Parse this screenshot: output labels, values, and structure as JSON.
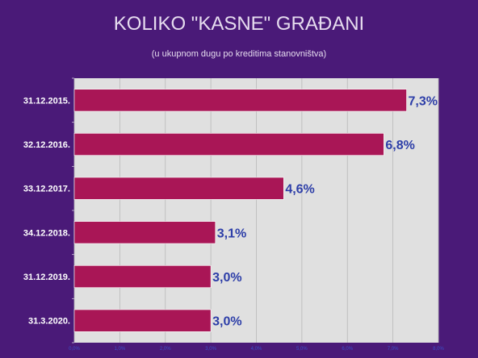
{
  "chart_data": {
    "type": "bar",
    "orientation": "horizontal",
    "title": "KOLIKO \"KASNE\" GRAĐANI",
    "subtitle": "(u ukupnom dugu po kreditima stanovništva)",
    "categories": [
      "31.12.2015.",
      "32.12.2016.",
      "33.12.2017.",
      "34.12.2018.",
      "31.12.2019.",
      "31.3.2020."
    ],
    "values": [
      7.3,
      6.8,
      4.6,
      3.1,
      3.0,
      3.0
    ],
    "value_labels": [
      "7,3%",
      "6,8%",
      "4,6%",
      "3,1%",
      "3,0%",
      "3,0%"
    ],
    "xlim": [
      0,
      8
    ],
    "x_ticks": [
      0,
      1,
      2,
      3,
      4,
      5,
      6,
      7,
      8
    ],
    "x_tick_labels": [
      "0,0%",
      "1,0%",
      "2,0%",
      "3,0%",
      "4,0%",
      "5,0%",
      "6,0%",
      "7,0%",
      "8,0%"
    ],
    "grid": true,
    "legend": "none",
    "colors": {
      "background": "#4a1a78",
      "plot_area": "#e0e0e0",
      "bar": "#a91656",
      "value_label": "#2d3ea8",
      "gridline": "#b8b8b8"
    }
  }
}
